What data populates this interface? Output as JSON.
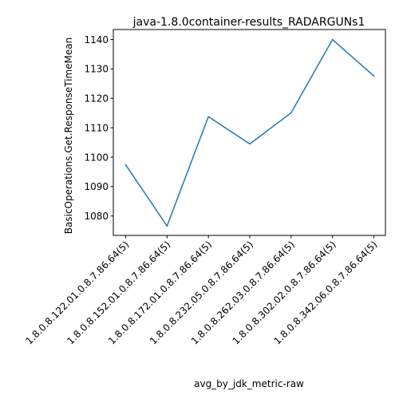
{
  "chart_data": {
    "type": "line",
    "title": "java-1.8.0container-results_RADARGUNs1",
    "xlabel": "avg_by_jdk_metric-raw",
    "ylabel": "BasicOperations.Get.ResponseTimeMean",
    "categories": [
      "1.8.0.8.122.01.0.8.7.86.64(5)",
      "1.8.0.8.152.01.0.8.7.86.64(5)",
      "1.8.0.8.172.01.0.8.7.86.64(5)",
      "1.8.0.8.232.05.0.8.7.86.64(5)",
      "1.8.0.8.262.03.0.8.7.86.64(5)",
      "1.8.0.8.302.02.0.8.7.86.64(5)",
      "1.8.0.8.342.06.0.8.7.86.64(5)"
    ],
    "series": [
      {
        "values": [
          1097.4,
          1076.6,
          1113.8,
          1104.5,
          1115.1,
          1140.0,
          1127.6
        ]
      }
    ],
    "ylim": [
      1073.4,
      1143.4
    ],
    "yticks": [
      1080,
      1090,
      1100,
      1110,
      1120,
      1130,
      1140
    ],
    "grid": false,
    "line_color": "#1f77b4"
  }
}
